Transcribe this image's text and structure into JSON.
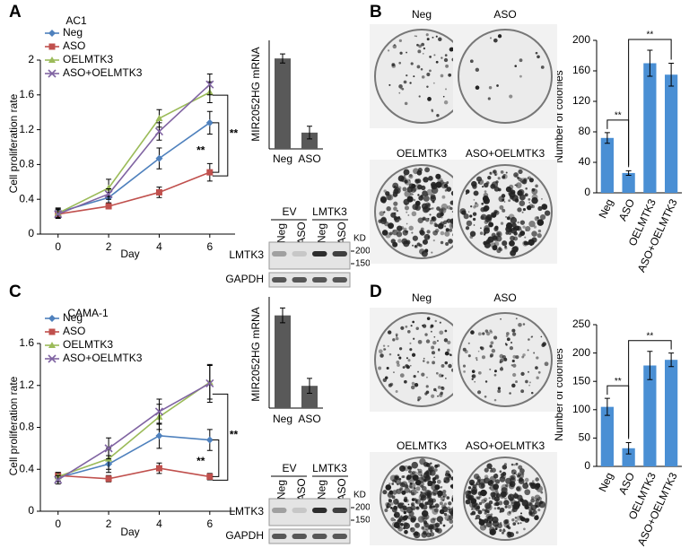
{
  "panel_labels": [
    "A",
    "B",
    "C",
    "D"
  ],
  "chart_data": [
    {
      "type": "line",
      "title": "AC1",
      "x_label": "Day",
      "y_label": "Cell proliferation rate",
      "x": [
        0,
        2,
        4,
        6
      ],
      "xlim": [
        -0.7,
        7
      ],
      "xticks": [
        0,
        2,
        4,
        6
      ],
      "ylim": [
        0,
        2
      ],
      "yticks": [
        0,
        0.4,
        0.8,
        1.2,
        1.6,
        2
      ],
      "series": [
        {
          "name": "Neg",
          "color": "#4f81bd",
          "marker": "diamond",
          "values": [
            0.25,
            0.42,
            0.87,
            1.28
          ],
          "errors": [
            0.05,
            0.06,
            0.12,
            0.13
          ]
        },
        {
          "name": "ASO",
          "color": "#c0504d",
          "marker": "square",
          "values": [
            0.23,
            0.32,
            0.48,
            0.71
          ],
          "errors": [
            0.03,
            0.03,
            0.06,
            0.1
          ]
        },
        {
          "name": "OELMTK3",
          "color": "#9bbb59",
          "marker": "triangle",
          "values": [
            0.24,
            0.53,
            1.33,
            1.63
          ],
          "errors": [
            0.05,
            0.1,
            0.1,
            0.12
          ]
        },
        {
          "name": "ASO+OELMTK3",
          "color": "#8064a2",
          "marker": "x",
          "values": [
            0.23,
            0.46,
            1.18,
            1.72
          ],
          "errors": [
            0.05,
            0.06,
            0.1,
            0.12
          ]
        }
      ],
      "annotations": [
        "**",
        "**"
      ]
    },
    {
      "type": "bar",
      "y_label": "MIR2052HG mRNA",
      "categories": [
        "Neg",
        "ASO"
      ],
      "values": [
        1.0,
        0.18
      ],
      "errors": [
        0.05,
        0.07
      ],
      "ylim": [
        0,
        1.2
      ],
      "color": "#595959"
    },
    {
      "type": "bar",
      "y_label": "Number of colonies",
      "categories": [
        "Neg",
        "ASO",
        "OELMTK3",
        "ASO+OELMTK3"
      ],
      "values": [
        72,
        26,
        170,
        155
      ],
      "errors": [
        7,
        3,
        17,
        15
      ],
      "ylim": [
        0,
        200
      ],
      "yticks": [
        0,
        40,
        80,
        120,
        160,
        200
      ],
      "color": "#4a8fd4",
      "annotations": [
        "**",
        "**"
      ]
    },
    {
      "type": "line",
      "title": "CAMA-1",
      "x_label": "Day",
      "y_label": "Cell proliferation rate",
      "x": [
        0,
        2,
        4,
        6
      ],
      "xlim": [
        -0.7,
        7
      ],
      "xticks": [
        0,
        2,
        4,
        6
      ],
      "ylim": [
        0,
        1.6
      ],
      "yticks": [
        0,
        0.4,
        0.8,
        1.2,
        1.6
      ],
      "series": [
        {
          "name": "Neg",
          "color": "#4f81bd",
          "marker": "diamond",
          "values": [
            0.32,
            0.45,
            0.72,
            0.68
          ],
          "errors": [
            0.04,
            0.08,
            0.12,
            0.1
          ]
        },
        {
          "name": "ASO",
          "color": "#c0504d",
          "marker": "square",
          "values": [
            0.34,
            0.31,
            0.41,
            0.33
          ],
          "errors": [
            0.03,
            0.03,
            0.05,
            0.03
          ]
        },
        {
          "name": "OELMTK3",
          "color": "#9bbb59",
          "marker": "triangle",
          "values": [
            0.33,
            0.5,
            0.9,
            1.23
          ],
          "errors": [
            0.04,
            0.1,
            0.12,
            0.16
          ]
        },
        {
          "name": "ASO+OELMTK3",
          "color": "#8064a2",
          "marker": "x",
          "values": [
            0.3,
            0.6,
            0.95,
            1.22
          ],
          "errors": [
            0.04,
            0.1,
            0.12,
            0.18
          ]
        }
      ],
      "annotations": [
        "**",
        "**"
      ]
    },
    {
      "type": "bar",
      "y_label": "MIR2052HG mRNA",
      "categories": [
        "Neg",
        "ASO"
      ],
      "values": [
        1.0,
        0.24
      ],
      "errors": [
        0.08,
        0.08
      ],
      "ylim": [
        0,
        1.2
      ],
      "color": "#595959"
    },
    {
      "type": "bar",
      "y_label": "Number of colonies",
      "categories": [
        "Neg",
        "ASO",
        "OELMTK3",
        "ASO+OELMTK3"
      ],
      "values": [
        105,
        32,
        178,
        188
      ],
      "errors": [
        15,
        10,
        25,
        12
      ],
      "ylim": [
        0,
        250
      ],
      "yticks": [
        0,
        50,
        100,
        150,
        200,
        250
      ],
      "color": "#4a8fd4",
      "annotations": [
        "**",
        "**"
      ]
    }
  ],
  "blots": [
    {
      "groups": [
        "EV",
        "LMTK3"
      ],
      "lanes": [
        "Neg",
        "ASO",
        "Neg",
        "ASO"
      ],
      "rows": [
        "LMTK3",
        "GAPDH"
      ],
      "marker_unit": "KD",
      "markers": [
        200,
        150
      ]
    },
    {
      "groups": [
        "EV",
        "LMTK3"
      ],
      "lanes": [
        "Neg",
        "ASO",
        "Neg",
        "ASO"
      ],
      "rows": [
        "LMTK3",
        "GAPDH"
      ],
      "marker_unit": "KD",
      "markers": [
        200,
        150
      ]
    }
  ],
  "plates": [
    {
      "labels": [
        "Neg",
        "ASO",
        "OELMTK3",
        "ASO+OELMTK3"
      ]
    },
    {
      "labels": [
        "Neg",
        "ASO",
        "OELMTK3",
        "ASO+OELMTK3"
      ]
    }
  ]
}
